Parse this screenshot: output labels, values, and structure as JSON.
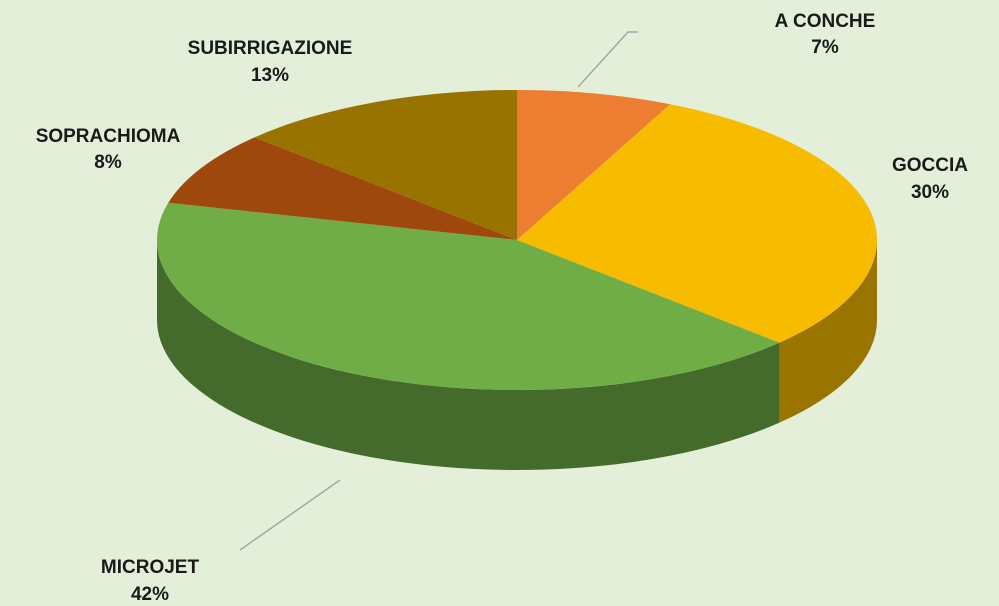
{
  "chart_data": {
    "type": "pie",
    "categories": [
      "A CONCHE",
      "GOCCIA",
      "MICROJET",
      "SOPRACHIOMA",
      "SUBIRRIGAZIONE"
    ],
    "values": [
      7,
      30,
      42,
      8,
      13
    ],
    "value_labels": [
      "7%",
      "30%",
      "42%",
      "8%",
      "13%"
    ],
    "colors": [
      "#ed7d31",
      "#f7bc00",
      "#70ad47",
      "#9e480e",
      "#997300"
    ]
  }
}
